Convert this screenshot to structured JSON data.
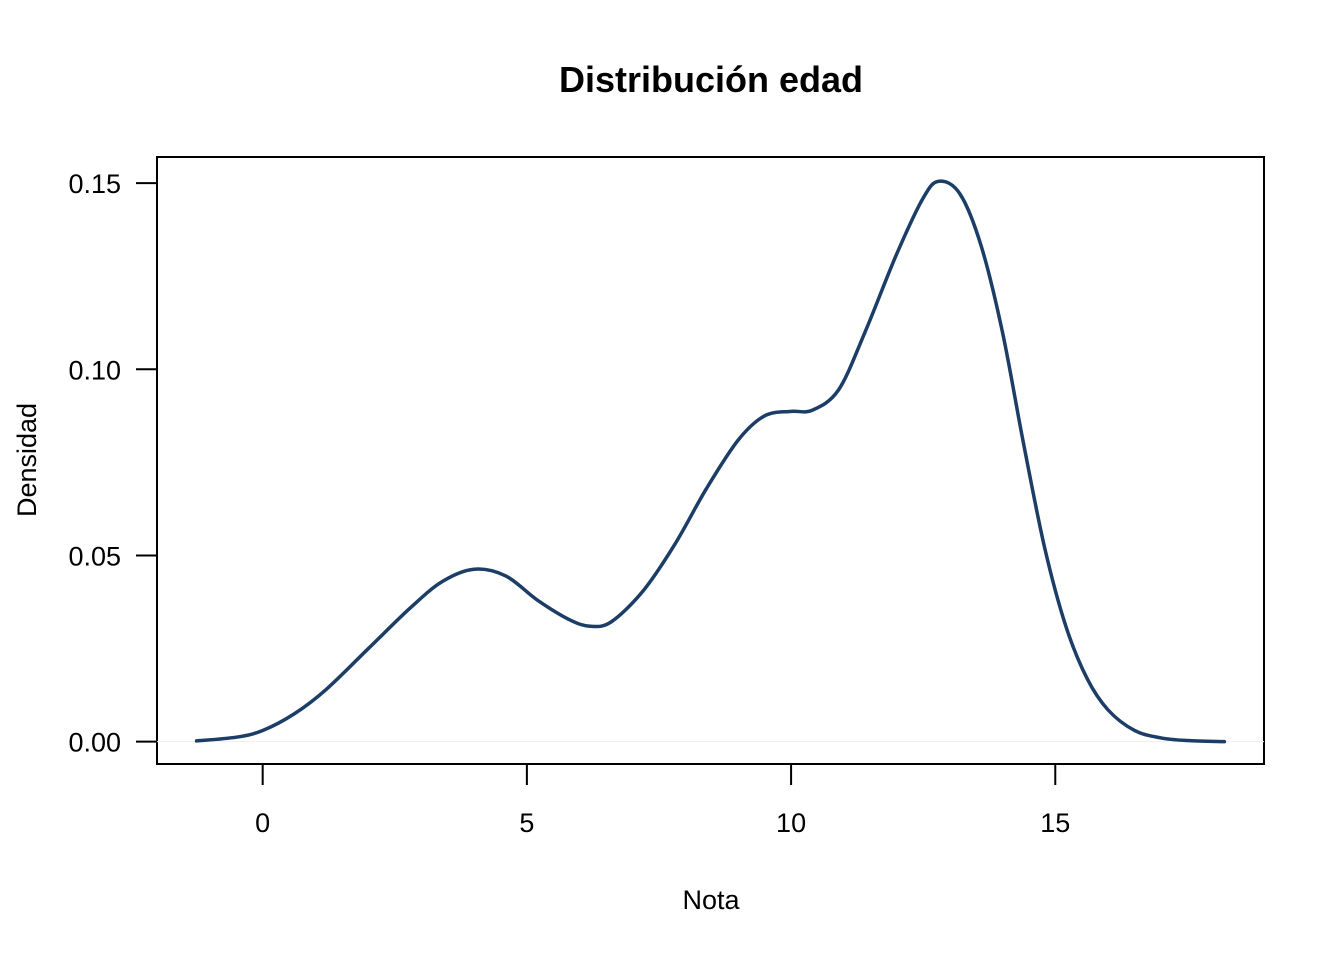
{
  "chart_data": {
    "type": "line",
    "title": "Distribución edad",
    "xlabel": "Nota",
    "ylabel": "Densidad",
    "xlim": [
      -2.0,
      18.95
    ],
    "ylim": [
      -0.006,
      0.157
    ],
    "x_ticks": [
      0,
      5,
      10,
      15
    ],
    "x_tick_labels": [
      "0",
      "5",
      "10",
      "15"
    ],
    "y_ticks": [
      0.0,
      0.05,
      0.1,
      0.15
    ],
    "y_tick_labels": [
      "0.00",
      "0.05",
      "0.10",
      "0.15"
    ],
    "grid": false,
    "legend": "none",
    "baseline": 0.0,
    "line_color": "#1b3d66",
    "series": [
      {
        "x": [
          -1.25,
          -0.5,
          0.0,
          0.6,
          1.2,
          2.0,
          2.8,
          3.4,
          4.0,
          4.6,
          5.2,
          5.8,
          6.2,
          6.6,
          7.2,
          7.8,
          8.4,
          9.0,
          9.5,
          10.0,
          10.4,
          10.9,
          11.4,
          12.0,
          12.5,
          12.8,
          13.2,
          13.6,
          14.0,
          14.4,
          14.8,
          15.2,
          15.6,
          16.0,
          16.5,
          17.0,
          17.5,
          18.2
        ],
        "y": [
          0.0002,
          0.0012,
          0.003,
          0.0075,
          0.014,
          0.025,
          0.036,
          0.043,
          0.0463,
          0.0445,
          0.038,
          0.0328,
          0.031,
          0.0322,
          0.0405,
          0.053,
          0.068,
          0.081,
          0.0875,
          0.0887,
          0.089,
          0.0945,
          0.11,
          0.131,
          0.146,
          0.1505,
          0.147,
          0.133,
          0.11,
          0.08,
          0.052,
          0.031,
          0.017,
          0.0085,
          0.003,
          0.001,
          0.0003,
          0.0
        ]
      }
    ]
  }
}
